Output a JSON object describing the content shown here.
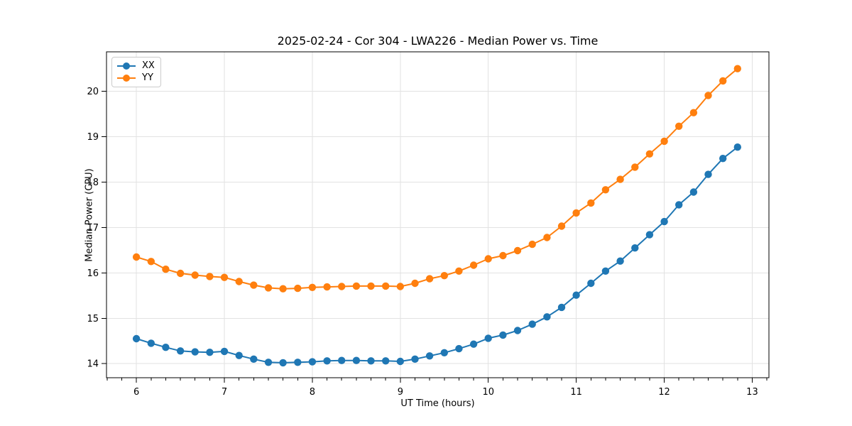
{
  "chart_data": {
    "type": "line",
    "title": "2025-02-24 - Cor 304 - LWA226 - Median Power vs. Time",
    "xlabel": "UT Time (hours)",
    "ylabel": "Median Power (CPU)",
    "grid": true,
    "legend_position": "upper left",
    "marker": "o",
    "xlim": [
      5.66,
      13.19
    ],
    "ylim": [
      13.69,
      20.87
    ],
    "xticks": [
      6,
      7,
      8,
      9,
      10,
      11,
      12,
      13
    ],
    "yticks": [
      14,
      15,
      16,
      17,
      18,
      19,
      20
    ],
    "x_minor_tick_interval": 0.16667,
    "x": [
      6.0,
      6.1667,
      6.3333,
      6.5,
      6.6667,
      6.8333,
      7.0,
      7.1667,
      7.3333,
      7.5,
      7.6667,
      7.8333,
      8.0,
      8.1667,
      8.3333,
      8.5,
      8.6667,
      8.8333,
      9.0,
      9.1667,
      9.3333,
      9.5,
      9.6667,
      9.8333,
      10.0,
      10.1667,
      10.3333,
      10.5,
      10.6667,
      10.8333,
      11.0,
      11.1667,
      11.3333,
      11.5,
      11.6667,
      11.8333,
      12.0,
      12.1667,
      12.3333,
      12.5,
      12.6667,
      12.8333
    ],
    "series": [
      {
        "name": "XX",
        "color": "#1f77b4",
        "values": [
          14.55,
          14.45,
          14.36,
          14.28,
          14.26,
          14.25,
          14.27,
          14.18,
          14.1,
          14.03,
          14.02,
          14.03,
          14.04,
          14.06,
          14.07,
          14.07,
          14.06,
          14.06,
          14.05,
          14.1,
          14.17,
          14.24,
          14.33,
          14.43,
          14.56,
          14.63,
          14.73,
          14.87,
          15.03,
          15.24,
          15.51,
          15.77,
          16.04,
          16.26,
          16.55,
          16.84,
          17.13,
          17.5,
          17.78,
          18.17,
          18.52,
          18.77
        ]
      },
      {
        "name": "YY",
        "color": "#ff7f0e",
        "values": [
          16.35,
          16.25,
          16.08,
          15.99,
          15.95,
          15.92,
          15.9,
          15.81,
          15.73,
          15.67,
          15.65,
          15.66,
          15.68,
          15.69,
          15.7,
          15.71,
          15.71,
          15.71,
          15.7,
          15.77,
          15.87,
          15.94,
          16.04,
          16.17,
          16.31,
          16.38,
          16.49,
          16.63,
          16.78,
          17.03,
          17.32,
          17.54,
          17.83,
          18.06,
          18.33,
          18.62,
          18.9,
          19.23,
          19.53,
          19.91,
          20.23,
          20.5
        ]
      }
    ],
    "style": {
      "grid_color": "#e2e2e2",
      "spine_color": "#000000",
      "tick_color": "#000000",
      "background": "#ffffff"
    }
  }
}
